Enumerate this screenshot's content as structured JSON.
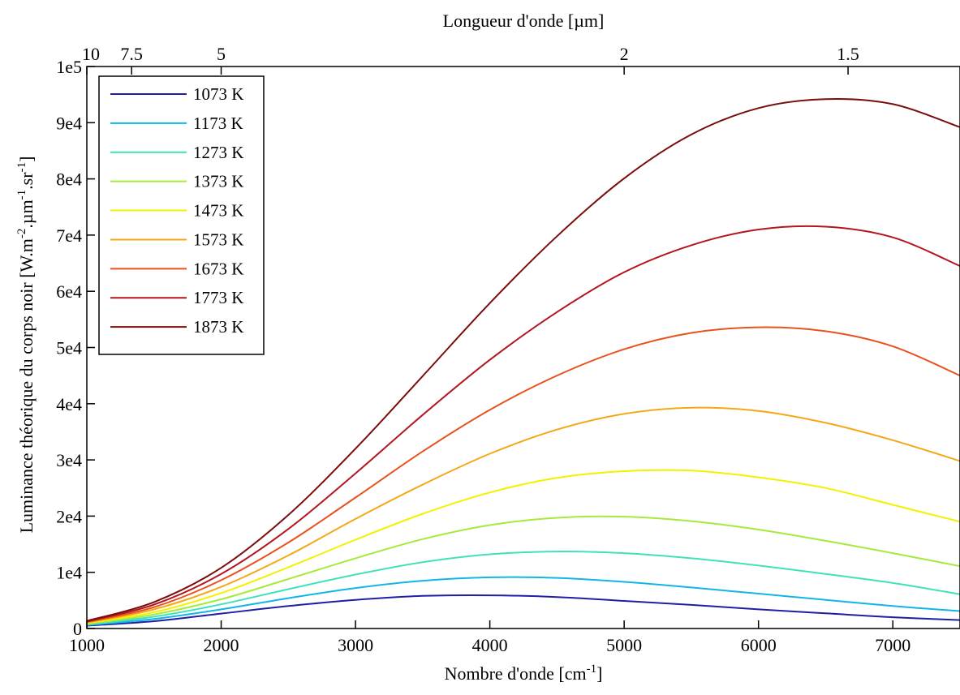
{
  "chart_data": {
    "type": "line",
    "xlabel": "Nombre d'onde [cm",
    "xlabel_sup": "-1",
    "xlabel_end": "]",
    "x2label": "Longueur d'onde [µm]",
    "ylabel_parts": [
      {
        "t": "Luminance théorique du corps noir [W.m",
        "sup": false
      },
      {
        "t": "-2",
        "sup": true
      },
      {
        "t": ".µm",
        "sup": false
      },
      {
        "t": "-1",
        "sup": true
      },
      {
        "t": ".sr",
        "sup": false
      },
      {
        "t": "-1",
        "sup": true
      },
      {
        "t": "]",
        "sup": false
      }
    ],
    "xlim": [
      1000,
      7500
    ],
    "ylim": [
      0,
      100000
    ],
    "xticks": [
      1000,
      2000,
      3000,
      4000,
      5000,
      6000,
      7000
    ],
    "xtick_labels": [
      "1000",
      "2000",
      "3000",
      "4000",
      "5000",
      "6000",
      "7000"
    ],
    "yticks": [
      0,
      10000,
      20000,
      30000,
      40000,
      50000,
      60000,
      70000,
      80000,
      90000,
      100000
    ],
    "ytick_labels": [
      "0",
      "1e4",
      "2e4",
      "3e4",
      "4e4",
      "5e4",
      "6e4",
      "7e4",
      "8e4",
      "9e4",
      "1e5"
    ],
    "x2ticks_um": [
      10,
      7.5,
      5,
      2,
      1.5
    ],
    "x2tick_labels": [
      "10",
      "7.5",
      "5",
      "2",
      "1.5"
    ],
    "legend_position": "top-left",
    "grid": false,
    "series": [
      {
        "name": "1073 K",
        "color": "#1f1fa6",
        "x": [
          1000,
          1500,
          2000,
          2500,
          3000,
          3500,
          4000,
          4500,
          5000,
          5500,
          6000,
          6500,
          7000,
          7500
        ],
        "y": [
          500,
          1300,
          2650,
          4000,
          5100,
          5800,
          5900,
          5600,
          4900,
          4200,
          3400,
          2700,
          2000,
          1500
        ]
      },
      {
        "name": "1173 K",
        "color": "#12b5e8",
        "x": [
          1000,
          1500,
          2000,
          2500,
          3000,
          3500,
          4000,
          4500,
          5000,
          5500,
          6000,
          6500,
          7000,
          7500
        ],
        "y": [
          600,
          1700,
          3400,
          5400,
          7200,
          8500,
          9100,
          9000,
          8300,
          7300,
          6200,
          5100,
          4000,
          3100
        ]
      },
      {
        "name": "1273 K",
        "color": "#40e3b8",
        "x": [
          1000,
          1500,
          2000,
          2500,
          3000,
          3500,
          4000,
          4500,
          5000,
          5500,
          6000,
          6500,
          7000,
          7500
        ],
        "y": [
          700,
          2100,
          4300,
          7000,
          9600,
          11800,
          13200,
          13700,
          13400,
          12500,
          11200,
          9700,
          8100,
          6100
        ]
      },
      {
        "name": "1373 K",
        "color": "#a6ea3c",
        "x": [
          1000,
          1500,
          2000,
          2500,
          3000,
          3500,
          4000,
          4500,
          5000,
          5500,
          6000,
          6500,
          7000,
          7500
        ],
        "y": [
          800,
          2500,
          5200,
          8800,
          12500,
          15900,
          18400,
          19700,
          19900,
          19100,
          17600,
          15600,
          13400,
          11100
        ]
      },
      {
        "name": "1473 K",
        "color": "#f2f200",
        "x": [
          1000,
          1500,
          2000,
          2500,
          3000,
          3500,
          4000,
          4500,
          5000,
          5500,
          6000,
          6500,
          7000,
          7500
        ],
        "y": [
          950,
          2900,
          6300,
          10900,
          15800,
          20400,
          24200,
          26800,
          28000,
          28100,
          26900,
          25000,
          22000,
          19000
        ]
      },
      {
        "name": "1573 K",
        "color": "#f5a815",
        "x": [
          1000,
          1500,
          2000,
          2500,
          3000,
          3500,
          4000,
          4500,
          5000,
          5500,
          6000,
          6500,
          7000,
          7500
        ],
        "y": [
          1050,
          3400,
          7400,
          13000,
          19500,
          25600,
          31100,
          35400,
          38200,
          39300,
          38700,
          36600,
          33500,
          29800
        ]
      },
      {
        "name": "1673 K",
        "color": "#e8521e",
        "x": [
          1000,
          1500,
          2000,
          2500,
          3000,
          3500,
          4000,
          4500,
          5000,
          5500,
          6000,
          6500,
          7000,
          7500
        ],
        "y": [
          1150,
          3800,
          8600,
          15300,
          23300,
          31500,
          38900,
          45000,
          49700,
          52600,
          53600,
          52900,
          50200,
          45000
        ]
      },
      {
        "name": "1773 K",
        "color": "#b3161e",
        "x": [
          1000,
          1500,
          2000,
          2500,
          3000,
          3500,
          4000,
          4500,
          5000,
          5500,
          6000,
          6500,
          7000,
          7500
        ],
        "y": [
          1250,
          4250,
          9700,
          17700,
          27600,
          38000,
          47800,
          56300,
          63400,
          68200,
          71000,
          71500,
          69600,
          64500
        ]
      },
      {
        "name": "1873 K",
        "color": "#7a0d0d",
        "x": [
          1000,
          1500,
          2000,
          2500,
          3000,
          3500,
          4000,
          4500,
          5000,
          5500,
          6000,
          6500,
          7000,
          7500
        ],
        "y": [
          1350,
          4700,
          10800,
          20200,
          32000,
          44900,
          57900,
          69800,
          80100,
          87900,
          92600,
          94200,
          93300,
          89200
        ]
      }
    ]
  }
}
